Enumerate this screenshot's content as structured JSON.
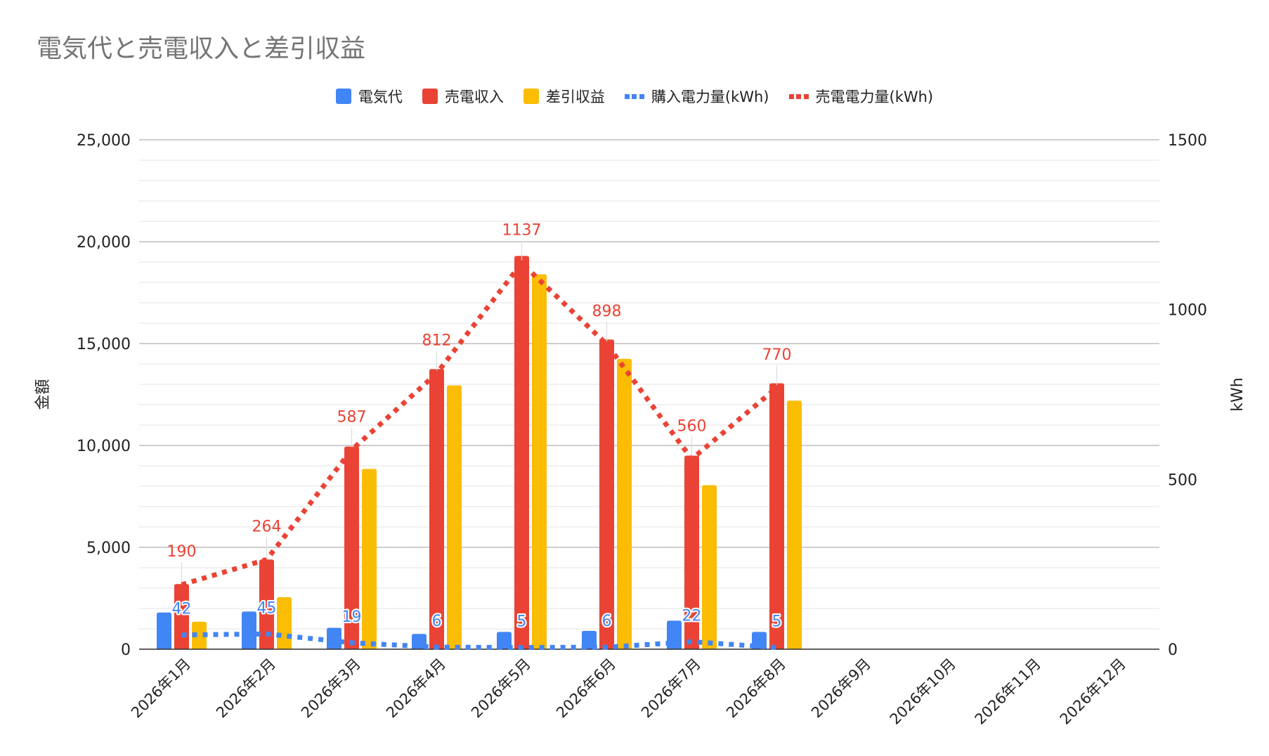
{
  "chart_data": {
    "type": "bar",
    "title": "電気代と売電収入と差引収益",
    "categories": [
      "2026年1月",
      "2026年2月",
      "2026年3月",
      "2026年4月",
      "2026年5月",
      "2026年6月",
      "2026年7月",
      "2026年8月",
      "2026年9月",
      "2026年10月",
      "2026年11月",
      "2026年12月"
    ],
    "y_left": {
      "label": "金額",
      "range": [
        0,
        25000
      ],
      "ticks": [
        0,
        5000,
        10000,
        15000,
        20000,
        25000
      ],
      "tick_labels": [
        "0",
        "5,000",
        "10,000",
        "15,000",
        "20,000",
        "25,000"
      ]
    },
    "y_right": {
      "label": "kWh",
      "range": [
        0,
        1500
      ],
      "ticks": [
        0,
        500,
        1000,
        1500
      ],
      "tick_labels": [
        "0",
        "500",
        "1000",
        "1500"
      ]
    },
    "grid": true,
    "legend_position": "top-center",
    "series": [
      {
        "name": "電気代",
        "type": "bar",
        "axis": "left",
        "color": "#4285F4",
        "values": [
          1800,
          1850,
          1050,
          750,
          850,
          900,
          1400,
          850,
          null,
          null,
          null,
          null
        ]
      },
      {
        "name": "売電収入",
        "type": "bar",
        "axis": "left",
        "color": "#EA4335",
        "values": [
          3200,
          4400,
          9950,
          13750,
          19300,
          15200,
          9500,
          13050,
          null,
          null,
          null,
          null
        ]
      },
      {
        "name": "差引収益",
        "type": "bar",
        "axis": "left",
        "color": "#FBBC04",
        "values": [
          1350,
          2550,
          8850,
          12950,
          18400,
          14250,
          8050,
          12200,
          null,
          null,
          null,
          null
        ]
      },
      {
        "name": "購入電力量(kWh)",
        "type": "line",
        "style": "dotted",
        "axis": "right",
        "color": "#4285F4",
        "values": [
          42,
          45,
          19,
          6,
          5,
          6,
          22,
          5,
          null,
          null,
          null,
          null
        ],
        "data_labels": [
          "42",
          "45",
          "19",
          "6",
          "5",
          "6",
          "22",
          "5"
        ]
      },
      {
        "name": "売電電力量(kWh)",
        "type": "line",
        "style": "dotted",
        "axis": "right",
        "color": "#EA4335",
        "values": [
          190,
          264,
          587,
          812,
          1137,
          898,
          560,
          770,
          null,
          null,
          null,
          null
        ],
        "data_labels": [
          "190",
          "264",
          "587",
          "812",
          "1137",
          "898",
          "560",
          "770"
        ]
      }
    ]
  }
}
